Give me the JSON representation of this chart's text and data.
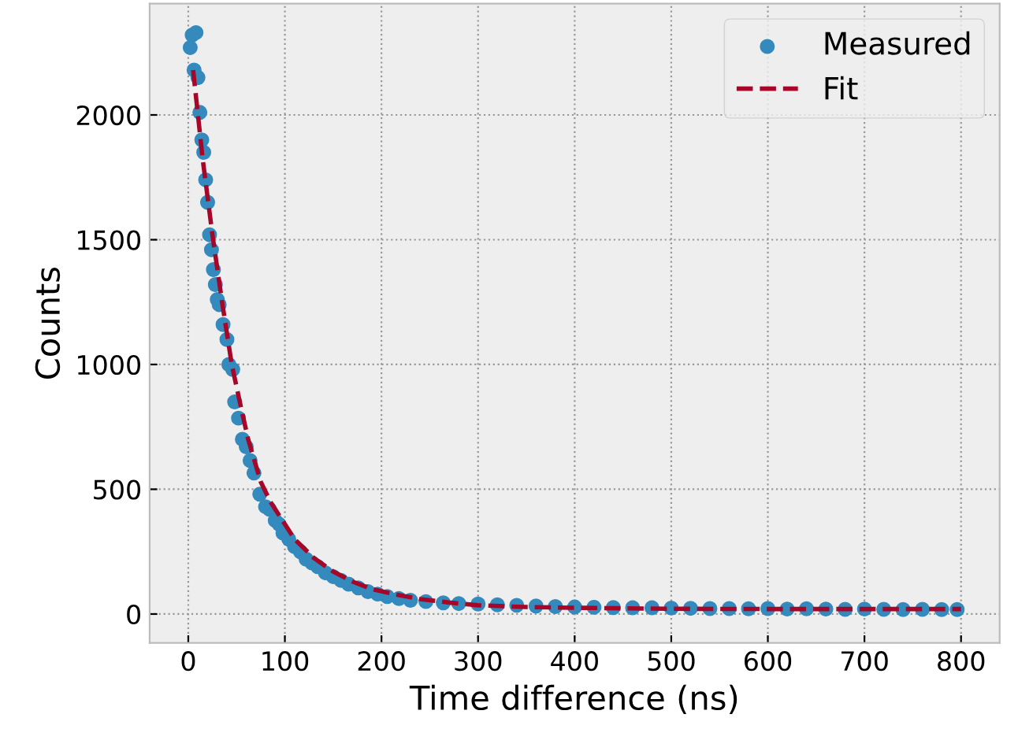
{
  "chart_data": {
    "type": "scatter",
    "xlabel": "Time difference (ns)",
    "ylabel": "Counts",
    "xlim": [
      -40,
      840
    ],
    "ylim": [
      -116,
      2446
    ],
    "xticks": [
      0,
      100,
      200,
      300,
      400,
      500,
      600,
      700,
      800
    ],
    "yticks": [
      0,
      500,
      1000,
      1500,
      2000
    ],
    "grid": true,
    "legend": "top right",
    "series": [
      {
        "name": "Measured",
        "marker": "circle",
        "color": "#348abd",
        "x": [
          2,
          4,
          6,
          8,
          10,
          12,
          14,
          16,
          18,
          20,
          22,
          24,
          26,
          28,
          30,
          32,
          36,
          40,
          42,
          46,
          48,
          52,
          56,
          60,
          64,
          68,
          74,
          80,
          84,
          90,
          94,
          98,
          104,
          110,
          116,
          122,
          128,
          134,
          142,
          150,
          158,
          166,
          176,
          186,
          196,
          206,
          218,
          230,
          246,
          264,
          280,
          300,
          320,
          340,
          360,
          380,
          400,
          420,
          440,
          460,
          480,
          500,
          520,
          540,
          560,
          580,
          600,
          620,
          640,
          660,
          680,
          700,
          720,
          740,
          760,
          780,
          796
        ],
        "values": [
          2270,
          2320,
          2180,
          2330,
          2150,
          2010,
          1900,
          1850,
          1740,
          1650,
          1520,
          1460,
          1380,
          1320,
          1260,
          1240,
          1160,
          1100,
          1000,
          980,
          850,
          785,
          700,
          670,
          615,
          565,
          480,
          430,
          420,
          375,
          360,
          325,
          300,
          270,
          250,
          220,
          205,
          190,
          165,
          150,
          135,
          120,
          105,
          90,
          80,
          70,
          62,
          55,
          50,
          45,
          42,
          40,
          37,
          35,
          32,
          30,
          28,
          27,
          26,
          25,
          25,
          24,
          23,
          22,
          22,
          21,
          22,
          20,
          21,
          20,
          19,
          20,
          19,
          18,
          19,
          18,
          18
        ]
      },
      {
        "name": "Fit",
        "type": "line",
        "line_style": "dashed",
        "marker": "none",
        "color": "#a60628",
        "x": [
          5,
          15,
          25,
          35,
          45,
          55,
          62,
          75,
          85,
          100,
          110,
          130,
          150,
          170,
          190,
          215,
          240,
          270,
          300,
          350,
          400,
          500,
          600,
          700,
          800
        ],
        "values": [
          2180,
          1820,
          1520,
          1250,
          1000,
          820,
          700,
          530,
          450,
          360,
          300,
          225,
          170,
          130,
          100,
          78,
          60,
          46,
          35,
          28,
          25,
          21,
          20,
          20,
          20
        ]
      }
    ]
  }
}
